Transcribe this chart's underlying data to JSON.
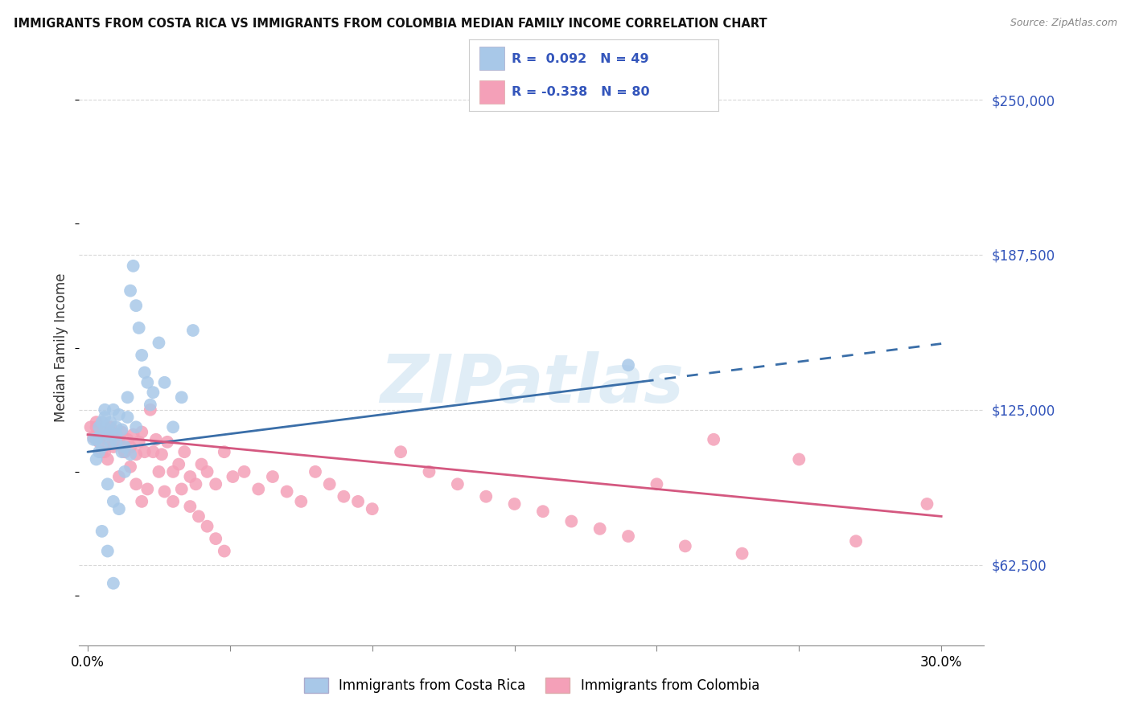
{
  "title": "IMMIGRANTS FROM COSTA RICA VS IMMIGRANTS FROM COLOMBIA MEDIAN FAMILY INCOME CORRELATION CHART",
  "source": "Source: ZipAtlas.com",
  "ylabel": "Median Family Income",
  "yticks": [
    62500,
    125000,
    187500,
    250000
  ],
  "ytick_labels": [
    "$62,500",
    "$125,000",
    "$187,500",
    "$250,000"
  ],
  "ylim": [
    30000,
    270000
  ],
  "xlim": [
    -0.003,
    0.315
  ],
  "legend1_R": "0.092",
  "legend1_N": "49",
  "legend2_R": "-0.338",
  "legend2_N": "80",
  "blue_color": "#a8c8e8",
  "pink_color": "#f4a0b8",
  "blue_line_color": "#3a6ea8",
  "pink_line_color": "#d45880",
  "legend_text_color": "#3355bb",
  "grid_color": "#d8d8d8",
  "watermark_text": "ZIPatlas",
  "watermark_color": "#c8dff0",
  "cr_x": [
    0.003,
    0.004,
    0.005,
    0.006,
    0.007,
    0.008,
    0.009,
    0.01,
    0.011,
    0.012,
    0.013,
    0.014,
    0.015,
    0.016,
    0.017,
    0.018,
    0.019,
    0.02,
    0.021,
    0.022,
    0.023,
    0.025,
    0.027,
    0.03,
    0.033,
    0.037,
    0.003,
    0.005,
    0.007,
    0.009,
    0.011,
    0.013,
    0.015,
    0.017,
    0.004,
    0.006,
    0.008,
    0.01,
    0.002,
    0.004,
    0.006,
    0.008,
    0.01,
    0.012,
    0.014,
    0.19,
    0.005,
    0.007,
    0.009
  ],
  "cr_y": [
    113000,
    108000,
    120000,
    118000,
    115000,
    112000,
    125000,
    118000,
    123000,
    117000,
    110000,
    130000,
    173000,
    183000,
    167000,
    158000,
    147000,
    140000,
    136000,
    127000,
    132000,
    152000,
    136000,
    118000,
    130000,
    157000,
    105000,
    110000,
    95000,
    88000,
    85000,
    100000,
    107000,
    118000,
    114000,
    122000,
    116000,
    112000,
    113000,
    118000,
    125000,
    120000,
    115000,
    108000,
    122000,
    143000,
    76000,
    68000,
    55000
  ],
  "co_x": [
    0.001,
    0.002,
    0.003,
    0.004,
    0.005,
    0.006,
    0.007,
    0.008,
    0.009,
    0.01,
    0.011,
    0.012,
    0.013,
    0.014,
    0.015,
    0.016,
    0.017,
    0.018,
    0.019,
    0.02,
    0.022,
    0.024,
    0.026,
    0.028,
    0.03,
    0.032,
    0.034,
    0.036,
    0.038,
    0.04,
    0.042,
    0.045,
    0.048,
    0.051,
    0.055,
    0.06,
    0.065,
    0.07,
    0.075,
    0.08,
    0.085,
    0.09,
    0.095,
    0.1,
    0.11,
    0.12,
    0.13,
    0.14,
    0.15,
    0.16,
    0.17,
    0.18,
    0.19,
    0.2,
    0.21,
    0.22,
    0.23,
    0.25,
    0.27,
    0.295,
    0.003,
    0.005,
    0.007,
    0.009,
    0.011,
    0.013,
    0.015,
    0.017,
    0.019,
    0.021,
    0.023,
    0.025,
    0.027,
    0.03,
    0.033,
    0.036,
    0.039,
    0.042,
    0.045,
    0.048
  ],
  "co_y": [
    118000,
    114000,
    120000,
    112000,
    116000,
    108000,
    113000,
    118000,
    110000,
    115000,
    112000,
    116000,
    108000,
    113000,
    110000,
    115000,
    107000,
    112000,
    116000,
    108000,
    125000,
    113000,
    107000,
    112000,
    100000,
    103000,
    108000,
    98000,
    95000,
    103000,
    100000,
    95000,
    108000,
    98000,
    100000,
    93000,
    98000,
    92000,
    88000,
    100000,
    95000,
    90000,
    88000,
    85000,
    108000,
    100000,
    95000,
    90000,
    87000,
    84000,
    80000,
    77000,
    74000,
    95000,
    70000,
    113000,
    67000,
    105000,
    72000,
    87000,
    118000,
    108000,
    105000,
    112000,
    98000,
    108000,
    102000,
    95000,
    88000,
    93000,
    108000,
    100000,
    92000,
    88000,
    93000,
    86000,
    82000,
    78000,
    73000,
    68000
  ]
}
